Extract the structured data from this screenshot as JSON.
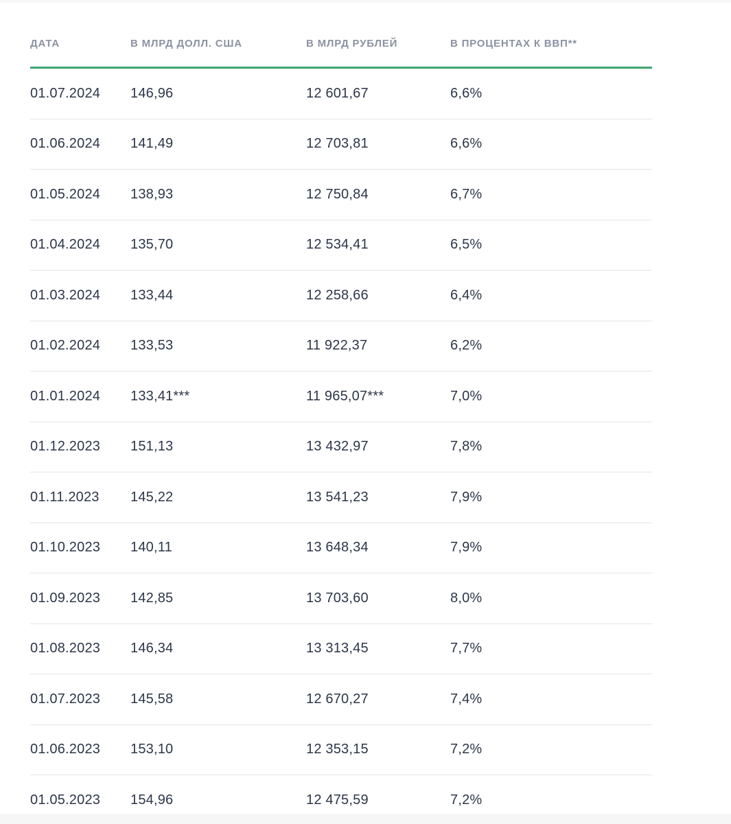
{
  "colors": {
    "accent_green": "#3ea570",
    "divider": "#e5e5e5",
    "header_text": "#8b92a1",
    "body_text": "#2c3648",
    "edge_band": "#f6f6f6"
  },
  "table": {
    "columns": [
      {
        "label": "ДАТА"
      },
      {
        "label": "В МЛРД ДОЛЛ. США"
      },
      {
        "label": "В МЛРД РУБЛЕЙ"
      },
      {
        "label": "В ПРОЦЕНТАХ К ВВП**"
      }
    ],
    "rows": [
      [
        "01.07.2024",
        "146,96",
        "12 601,67",
        "6,6%"
      ],
      [
        "01.06.2024",
        "141,49",
        "12 703,81",
        "6,6%"
      ],
      [
        "01.05.2024",
        "138,93",
        "12 750,84",
        "6,7%"
      ],
      [
        "01.04.2024",
        "135,70",
        "12 534,41",
        "6,5%"
      ],
      [
        "01.03.2024",
        "133,44",
        "12 258,66",
        "6,4%"
      ],
      [
        "01.02.2024",
        "133,53",
        "11 922,37",
        "6,2%"
      ],
      [
        "01.01.2024",
        "133,41***",
        "11 965,07***",
        "7,0%"
      ],
      [
        "01.12.2023",
        "151,13",
        "13 432,97",
        "7,8%"
      ],
      [
        "01.11.2023",
        "145,22",
        "13 541,23",
        "7,9%"
      ],
      [
        "01.10.2023",
        "140,11",
        "13 648,34",
        "7,9%"
      ],
      [
        "01.09.2023",
        "142,85",
        "13 703,60",
        "8,0%"
      ],
      [
        "01.08.2023",
        "146,34",
        "13 313,45",
        "7,7%"
      ],
      [
        "01.07.2023",
        "145,58",
        "12 670,27",
        "7,4%"
      ],
      [
        "01.06.2023",
        "153,10",
        "12 353,15",
        "7,2%"
      ],
      [
        "01.05.2023",
        "154,96",
        "12 475,59",
        "7,2%"
      ]
    ]
  }
}
